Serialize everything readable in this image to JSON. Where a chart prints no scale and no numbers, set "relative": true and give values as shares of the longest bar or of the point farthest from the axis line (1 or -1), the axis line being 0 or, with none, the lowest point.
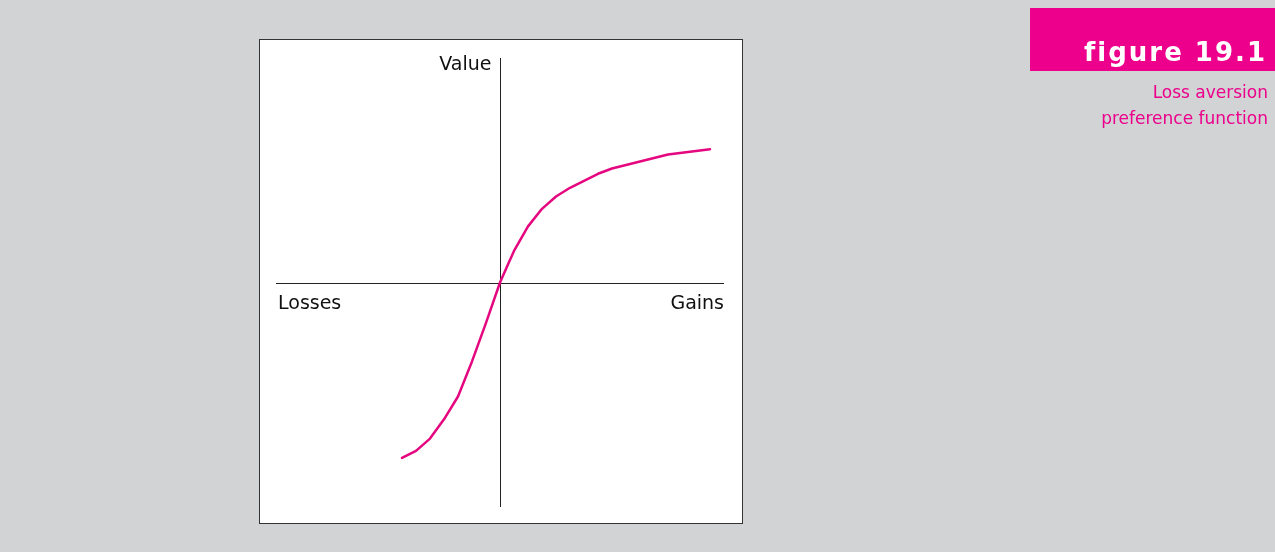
{
  "chart_data": {
    "type": "line",
    "title": "figure 19.1",
    "subtitle": "Loss aversion preference function",
    "ylabel": "Value",
    "annotations": [
      "Losses",
      "Gains"
    ],
    "relative": true,
    "marker": "none",
    "line_style": "solid",
    "categories": [
      null,
      null,
      null,
      null,
      null,
      null,
      null,
      null,
      null,
      null,
      null,
      null,
      null,
      null,
      null,
      null,
      null,
      null,
      null,
      null,
      null,
      null,
      null,
      null,
      null,
      null,
      null,
      null,
      null,
      null,
      null,
      null,
      null
    ],
    "series": [
      {
        "color": "#e5077f",
        "values": [
          null,
          null,
          null,
          null,
          null,
          null,
          null,
          null,
          null,
          -1.0,
          -0.96,
          -0.89,
          -0.78,
          -0.65,
          -0.45,
          -0.23,
          0,
          0.18,
          0.32,
          0.42,
          0.49,
          0.54,
          0.58,
          0.62,
          0.65,
          0.67,
          0.69,
          0.71,
          0.73,
          0.74,
          0.75,
          0.76,
          null
        ]
      }
    ]
  }
}
